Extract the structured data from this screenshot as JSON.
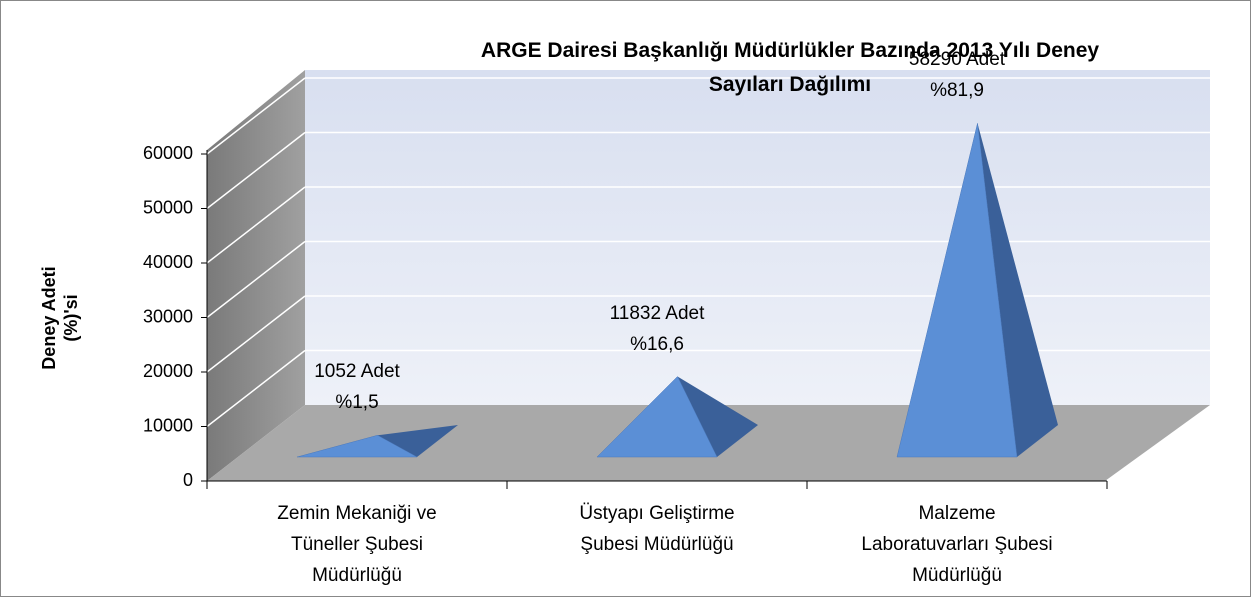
{
  "chart_data": {
    "type": "pyramid3d",
    "title": "ARGE Dairesi Başkanlığı Müdürlükler Bazında 2013  Yılı Deney\nSayıları Dağılımı",
    "y_label": "Deney  Adeti\n(%)'si",
    "categories": [
      "Zemin Mekaniği ve\nTüneller Şubesi\nMüdürlüğü",
      "Üstyapı Geliştirme\nŞubesi Müdürlüğü",
      "Malzeme\nLaboratuvarları Şubesi\nMüdürlüğü"
    ],
    "values": [
      1052,
      11832,
      58290
    ],
    "value_labels": [
      "1052 Adet",
      "11832 Adet",
      "58290 Adet"
    ],
    "shares": [
      1.5,
      16.6,
      81.9
    ],
    "share_labels": [
      "%1,5",
      "%16,6",
      "%81,9"
    ],
    "color": "#5b8fd6",
    "ylim": [
      0,
      60000
    ],
    "yticks": [
      0,
      10000,
      20000,
      30000,
      40000,
      50000,
      60000
    ],
    "grid": true
  }
}
